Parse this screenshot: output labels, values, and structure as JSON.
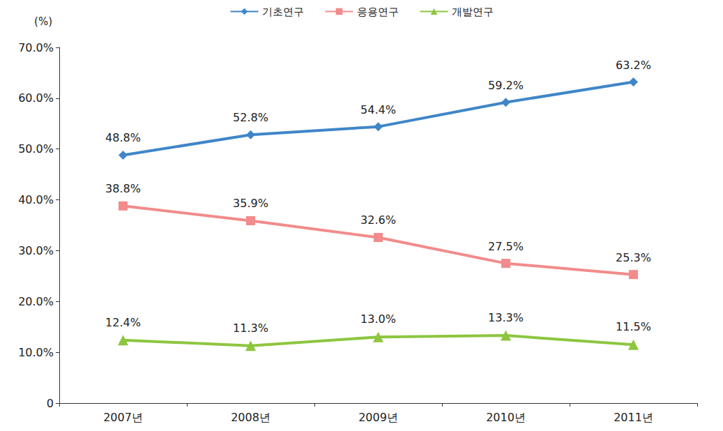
{
  "chart_data": {
    "type": "line",
    "y_label": "(%)",
    "categories": [
      "2007년",
      "2008년",
      "2009년",
      "2010년",
      "2011년"
    ],
    "series": [
      {
        "name": "기초연구",
        "color": "#3f86c8",
        "marker": "diamond",
        "values": [
          48.8,
          52.8,
          54.4,
          59.2,
          63.2
        ],
        "value_labels": [
          "48.8%",
          "52.8%",
          "54.4%",
          "59.2%",
          "63.2%"
        ]
      },
      {
        "name": "응용연구",
        "color": "#f28b8b",
        "marker": "square",
        "values": [
          38.8,
          35.9,
          32.6,
          27.5,
          25.3
        ],
        "value_labels": [
          "38.8%",
          "35.9%",
          "32.6%",
          "27.5%",
          "25.3%"
        ]
      },
      {
        "name": "개발연구",
        "color": "#8dc63f",
        "marker": "triangle",
        "values": [
          12.4,
          11.3,
          13.0,
          13.3,
          11.5
        ],
        "value_labels": [
          "12.4%",
          "11.3%",
          "13.0%",
          "13.3%",
          "11.5%"
        ]
      }
    ],
    "ylim": [
      0,
      70
    ],
    "yticks": [
      0,
      {
        "value": 10,
        "label": "10.0%"
      },
      {
        "value": 20,
        "label": "20.0%"
      },
      {
        "value": 30,
        "label": "30.0%"
      },
      {
        "value": 40,
        "label": "40.0%"
      },
      {
        "value": 50,
        "label": "50.0%"
      },
      {
        "value": 60,
        "label": "60.0%"
      },
      {
        "value": 70,
        "label": "70.0%"
      }
    ],
    "grid": false,
    "legend": "top",
    "data_labels": true
  }
}
